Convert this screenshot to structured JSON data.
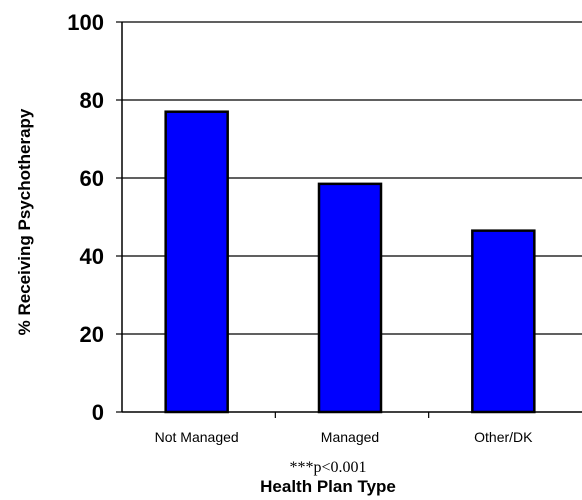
{
  "chart_data": {
    "type": "bar",
    "categories": [
      "Not Managed",
      "Managed",
      "Other/DK"
    ],
    "values": [
      77,
      58.5,
      46.5
    ],
    "xlabel": "Health Plan Type",
    "ylabel": "% Receiving Psychotherapy",
    "ylim": [
      0,
      100
    ],
    "yticks": [
      0,
      20,
      40,
      60,
      80,
      100
    ],
    "annotation": "***p<0.001",
    "grid": true,
    "bar_color": "#0000ff",
    "bar_edge_color": "#000000"
  }
}
